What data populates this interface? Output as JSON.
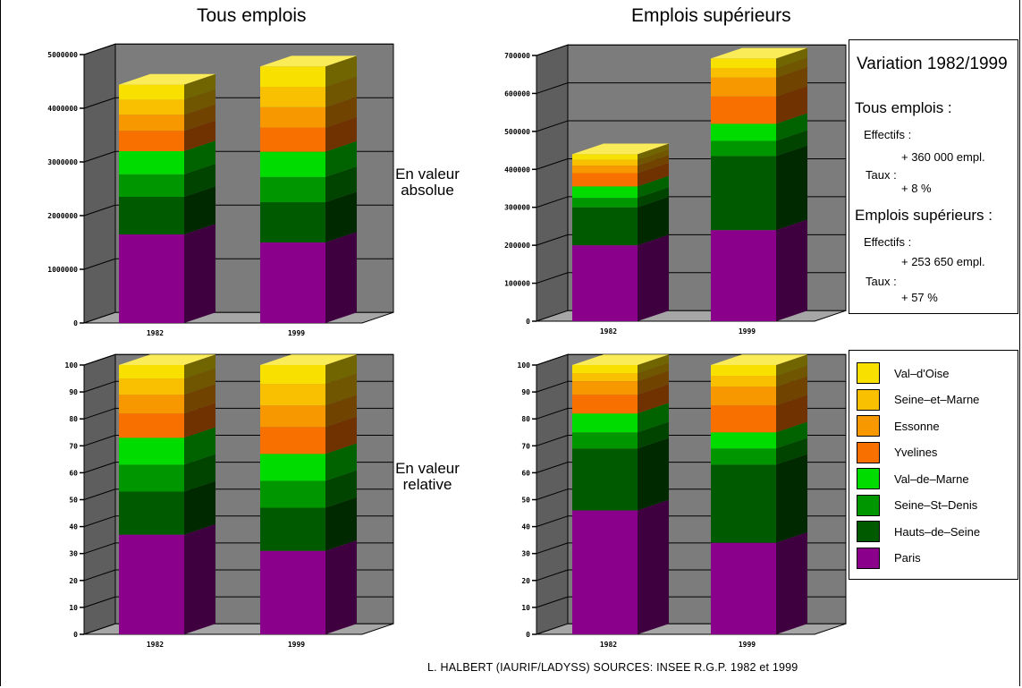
{
  "column_titles": [
    "Tous emplois",
    "Emplois supérieurs"
  ],
  "row_labels": {
    "absolute": "En valeur\nabsolue",
    "relative": "En valeur\nrelative"
  },
  "source": "L. HALBERT (IAURIF/LADYSS) SOURCES: INSEE R.G.P. 1982 et 1999",
  "info": {
    "title": "Variation 1982/1999",
    "section1_title": "Tous emplois :",
    "s1_effectifs_label": "Effectifs :",
    "s1_effectifs_value": "+ 360 000 empl.",
    "s1_taux_label": "Taux :",
    "s1_taux_value": "+ 8 %",
    "section2_title": "Emplois supérieurs :",
    "s2_effectifs_label": "Effectifs :",
    "s2_effectifs_value": "+ 253 650 empl.",
    "s2_taux_label": "Taux :",
    "s2_taux_value": "+ 57 %"
  },
  "colors": {
    "Paris": "#8b008b",
    "Hauts-de-Seine": "#005a00",
    "Seine-St-Denis": "#009600",
    "Val-de-Marne": "#00dc00",
    "Yvelines": "#f87000",
    "Essonne": "#f89800",
    "Seine-et-Marne": "#f8c000",
    "Val-d'Oise": "#f8e000"
  },
  "legend": [
    {
      "name": "Val-d'Oise",
      "label": "Val–d'Oise"
    },
    {
      "name": "Seine-et-Marne",
      "label": "Seine–et–Marne"
    },
    {
      "name": "Essonne",
      "label": "Essonne"
    },
    {
      "name": "Yvelines",
      "label": "Yvelines"
    },
    {
      "name": "Val-de-Marne",
      "label": "Val–de–Marne"
    },
    {
      "name": "Seine-St-Denis",
      "label": "Seine–St–Denis"
    },
    {
      "name": "Hauts-de-Seine",
      "label": "Hauts–de–Seine"
    },
    {
      "name": "Paris",
      "label": "Paris"
    }
  ],
  "chart_data": [
    {
      "type": "bar",
      "stacked": true,
      "panel": "Tous emplois - en valeur absolue",
      "categories": [
        "1982",
        "1999"
      ],
      "ylim": [
        0,
        5000000
      ],
      "yticks": [
        0,
        1000000,
        2000000,
        3000000,
        4000000,
        5000000
      ],
      "series": [
        {
          "name": "Paris",
          "values": [
            1650000,
            1500000
          ]
        },
        {
          "name": "Hauts-de-Seine",
          "values": [
            700000,
            750000
          ]
        },
        {
          "name": "Seine-St-Denis",
          "values": [
            420000,
            470000
          ]
        },
        {
          "name": "Val-de-Marne",
          "values": [
            430000,
            470000
          ]
        },
        {
          "name": "Yvelines",
          "values": [
            380000,
            450000
          ]
        },
        {
          "name": "Essonne",
          "values": [
            300000,
            380000
          ]
        },
        {
          "name": "Seine-et-Marne",
          "values": [
            280000,
            380000
          ]
        },
        {
          "name": "Val-d'Oise",
          "values": [
            280000,
            380000
          ]
        }
      ],
      "grid": true
    },
    {
      "type": "bar",
      "stacked": true,
      "panel": "Emplois supérieurs - en valeur absolue",
      "categories": [
        "1982",
        "1999"
      ],
      "ylim": [
        0,
        700000
      ],
      "yticks": [
        0,
        100000,
        200000,
        300000,
        400000,
        500000,
        600000,
        700000
      ],
      "series": [
        {
          "name": "Paris",
          "values": [
            200000,
            240000
          ]
        },
        {
          "name": "Hauts-de-Seine",
          "values": [
            100000,
            195000
          ]
        },
        {
          "name": "Seine-St-Denis",
          "values": [
            25000,
            40000
          ]
        },
        {
          "name": "Val-de-Marne",
          "values": [
            30000,
            45000
          ]
        },
        {
          "name": "Yvelines",
          "values": [
            35000,
            72000
          ]
        },
        {
          "name": "Essonne",
          "values": [
            20000,
            50000
          ]
        },
        {
          "name": "Seine-et-Marne",
          "values": [
            15000,
            25000
          ]
        },
        {
          "name": "Val-d'Oise",
          "values": [
            15000,
            25000
          ]
        }
      ],
      "grid": true
    },
    {
      "type": "bar",
      "stacked": true,
      "panel": "Tous emplois - en valeur relative",
      "categories": [
        "1982",
        "1999"
      ],
      "ylim": [
        0,
        100
      ],
      "yticks": [
        0,
        10,
        20,
        30,
        40,
        50,
        60,
        70,
        80,
        90,
        100
      ],
      "series": [
        {
          "name": "Paris",
          "values": [
            37,
            31
          ]
        },
        {
          "name": "Hauts-de-Seine",
          "values": [
            16,
            16
          ]
        },
        {
          "name": "Seine-St-Denis",
          "values": [
            10,
            10
          ]
        },
        {
          "name": "Val-de-Marne",
          "values": [
            10,
            10
          ]
        },
        {
          "name": "Yvelines",
          "values": [
            9,
            10
          ]
        },
        {
          "name": "Essonne",
          "values": [
            7,
            8
          ]
        },
        {
          "name": "Seine-et-Marne",
          "values": [
            6,
            8
          ]
        },
        {
          "name": "Val-d'Oise",
          "values": [
            5,
            7
          ]
        }
      ],
      "grid": true
    },
    {
      "type": "bar",
      "stacked": true,
      "panel": "Emplois supérieurs - en valeur relative",
      "categories": [
        "1982",
        "1999"
      ],
      "ylim": [
        0,
        100
      ],
      "yticks": [
        0,
        10,
        20,
        30,
        40,
        50,
        60,
        70,
        80,
        90,
        100
      ],
      "series": [
        {
          "name": "Paris",
          "values": [
            46,
            34
          ]
        },
        {
          "name": "Hauts-de-Seine",
          "values": [
            23,
            29
          ]
        },
        {
          "name": "Seine-St-Denis",
          "values": [
            6,
            6
          ]
        },
        {
          "name": "Val-de-Marne",
          "values": [
            7,
            6
          ]
        },
        {
          "name": "Yvelines",
          "values": [
            7,
            10
          ]
        },
        {
          "name": "Essonne",
          "values": [
            5,
            7
          ]
        },
        {
          "name": "Seine-et-Marne",
          "values": [
            3,
            4
          ]
        },
        {
          "name": "Val-d'Oise",
          "values": [
            3,
            4
          ]
        }
      ],
      "grid": true
    }
  ]
}
